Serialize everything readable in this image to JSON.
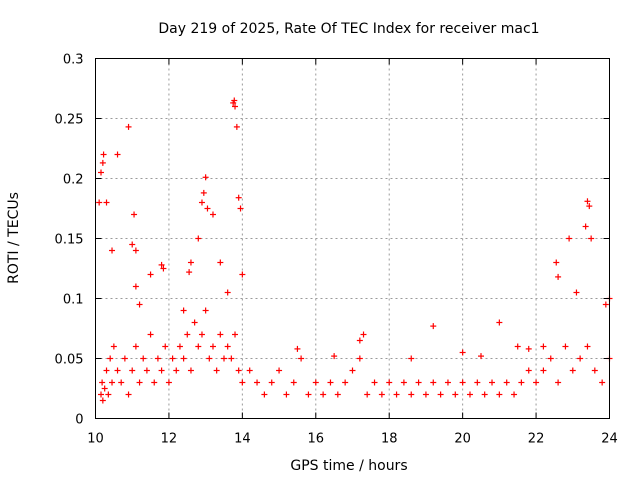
{
  "chart_data": {
    "type": "scatter",
    "title": "Day 219 of 2025, Rate Of TEC Index for receiver mac1",
    "xlabel": "GPS time / hours",
    "ylabel": "ROTI / TECUs",
    "xlim": [
      10,
      24
    ],
    "ylim": [
      0,
      0.3
    ],
    "x_ticks": [
      10,
      12,
      14,
      16,
      18,
      20,
      22,
      24
    ],
    "x_tick_labels": [
      "10",
      "12",
      "14",
      "16",
      "18",
      "20",
      "22",
      "24"
    ],
    "y_ticks": [
      0,
      0.05,
      0.1,
      0.15,
      0.2,
      0.25,
      0.3
    ],
    "y_tick_labels": [
      "0",
      "0.05",
      "0.1",
      "0.15",
      "0.2",
      "0.25",
      "0.3"
    ],
    "grid": true,
    "marker": "+",
    "series": [
      {
        "name": "ROTI",
        "color": "#ff0000",
        "x": [
          10.15,
          10.18,
          10.2,
          10.25,
          10.3,
          10.35,
          10.4,
          10.45,
          10.5,
          10.6,
          10.7,
          10.8,
          10.9,
          11.0,
          11.1,
          11.2,
          11.3,
          11.4,
          11.5,
          11.6,
          11.7,
          11.8,
          11.9,
          12.0,
          12.1,
          12.2,
          12.3,
          12.4,
          12.5,
          12.6,
          12.7,
          12.8,
          12.9,
          13.0,
          13.1,
          13.2,
          13.3,
          13.4,
          13.5,
          13.6,
          13.7,
          13.8,
          13.9,
          14.0,
          14.2,
          14.4,
          14.6,
          14.8,
          15.0,
          15.2,
          15.4,
          15.6,
          15.8,
          16.0,
          16.2,
          16.4,
          16.6,
          16.8,
          17.0,
          17.2,
          17.4,
          17.6,
          17.8,
          18.0,
          18.2,
          18.4,
          18.6,
          18.8,
          19.0,
          19.2,
          19.4,
          19.6,
          19.8,
          20.0,
          20.2,
          20.4,
          20.6,
          20.8,
          21.0,
          21.2,
          21.4,
          21.6,
          21.8,
          22.0,
          22.2,
          22.4,
          22.6,
          22.8,
          23.0,
          23.2,
          23.4,
          23.6,
          23.8,
          24.0,
          10.1,
          10.15,
          10.2,
          10.22,
          10.3,
          10.45,
          10.6,
          10.9,
          11.05,
          11.1,
          11.5,
          11.8,
          11.85,
          12.55,
          12.6,
          12.9,
          12.95,
          13.0,
          13.05,
          13.2,
          13.75,
          13.78,
          13.8,
          13.85,
          13.9,
          13.95,
          14.0,
          11.0,
          11.1,
          11.2,
          12.4,
          12.8,
          13.4,
          13.6,
          22.55,
          22.6,
          22.9,
          23.1,
          23.35,
          23.4,
          23.45,
          23.5,
          23.9,
          24.0,
          17.2,
          17.3,
          19.2,
          21.0,
          21.5,
          15.5,
          16.5,
          18.6,
          20.0,
          20.5,
          21.8,
          22.2
        ],
        "y": [
          0.02,
          0.03,
          0.015,
          0.025,
          0.04,
          0.02,
          0.05,
          0.03,
          0.06,
          0.04,
          0.03,
          0.05,
          0.02,
          0.04,
          0.06,
          0.03,
          0.05,
          0.04,
          0.07,
          0.03,
          0.05,
          0.04,
          0.06,
          0.03,
          0.05,
          0.04,
          0.06,
          0.05,
          0.07,
          0.04,
          0.08,
          0.06,
          0.07,
          0.09,
          0.05,
          0.06,
          0.04,
          0.07,
          0.05,
          0.06,
          0.05,
          0.07,
          0.04,
          0.03,
          0.04,
          0.03,
          0.02,
          0.03,
          0.04,
          0.02,
          0.03,
          0.05,
          0.02,
          0.03,
          0.02,
          0.03,
          0.02,
          0.03,
          0.04,
          0.05,
          0.02,
          0.03,
          0.02,
          0.03,
          0.02,
          0.03,
          0.02,
          0.03,
          0.02,
          0.03,
          0.02,
          0.03,
          0.02,
          0.03,
          0.02,
          0.03,
          0.02,
          0.03,
          0.02,
          0.03,
          0.02,
          0.03,
          0.04,
          0.03,
          0.04,
          0.05,
          0.03,
          0.06,
          0.04,
          0.05,
          0.06,
          0.04,
          0.03,
          0.05,
          0.18,
          0.205,
          0.213,
          0.22,
          0.18,
          0.14,
          0.22,
          0.243,
          0.17,
          0.14,
          0.12,
          0.128,
          0.125,
          0.122,
          0.13,
          0.18,
          0.188,
          0.201,
          0.175,
          0.17,
          0.263,
          0.265,
          0.26,
          0.243,
          0.184,
          0.175,
          0.12,
          0.145,
          0.11,
          0.095,
          0.09,
          0.15,
          0.13,
          0.105,
          0.13,
          0.118,
          0.15,
          0.105,
          0.16,
          0.181,
          0.177,
          0.15,
          0.095,
          0.1,
          0.065,
          0.07,
          0.077,
          0.08,
          0.06,
          0.058,
          0.052,
          0.05,
          0.055,
          0.052,
          0.058,
          0.06
        ]
      }
    ]
  }
}
